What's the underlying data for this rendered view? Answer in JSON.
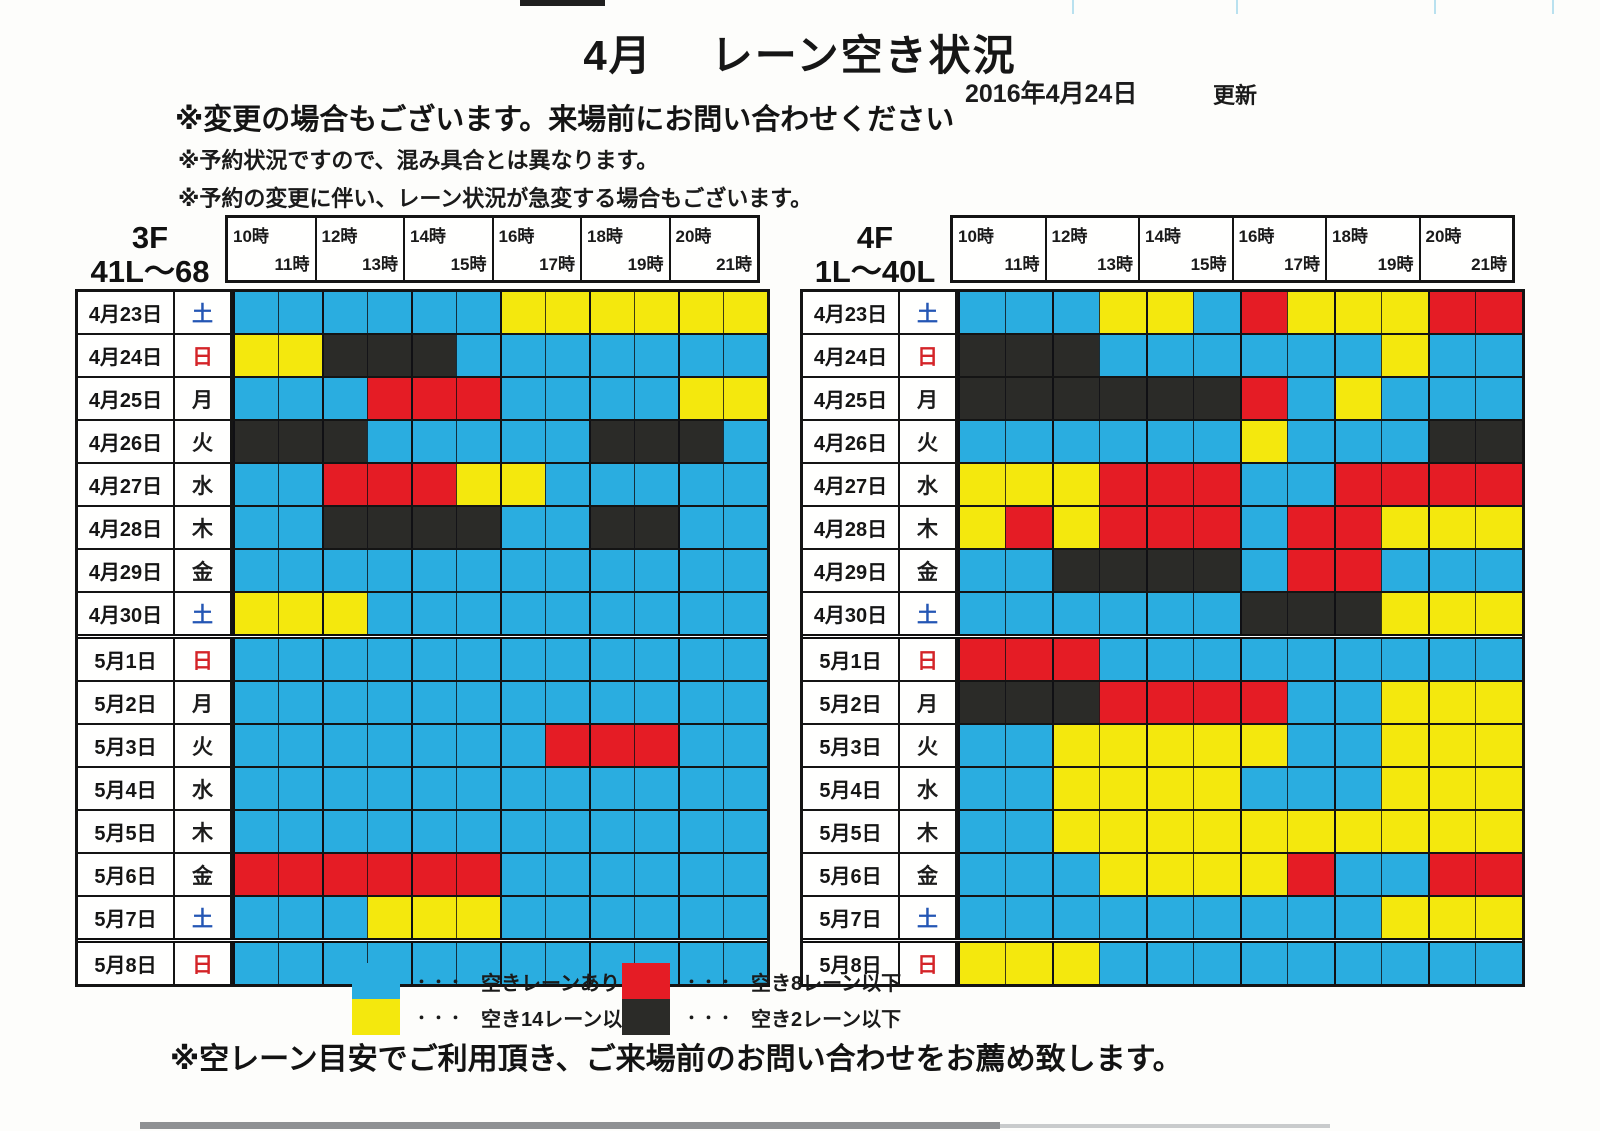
{
  "header": {
    "month": "4月",
    "title": "レーン空き状況",
    "updated_date": "2016年4月24日",
    "updated_label": "更新"
  },
  "notes": [
    "※変更の場合もございます。来場前にお問い合わせください",
    "※予約状況ですので、混み具合とは異なります。",
    "※予約の変更に伴い、レーン状況が急変する場合もございます。"
  ],
  "time_groups": [
    {
      "first": "10時",
      "second": "11時"
    },
    {
      "first": "12時",
      "second": "13時"
    },
    {
      "first": "14時",
      "second": "15時"
    },
    {
      "first": "16時",
      "second": "17時"
    },
    {
      "first": "18時",
      "second": "19時"
    },
    {
      "first": "20時",
      "second": "21時"
    }
  ],
  "legend": {
    "dots": "・・・",
    "items": [
      {
        "key": "available",
        "label": "空きレーンあり"
      },
      {
        "key": "limited14",
        "label": "空き14レーン以下"
      },
      {
        "key": "limited8",
        "label": "空き8レーン以下"
      },
      {
        "key": "limited2",
        "label": "空き2レーン以下"
      }
    ]
  },
  "footer_note": "※空レーン目安でご利用頂き、ご来場前のお問い合わせをお薦め致します。",
  "colors": {
    "available": "#2aade0",
    "limited14": "#f4e80d",
    "limited8": "#e51c25",
    "limited2": "#2b2b28",
    "saturday_text": "#2456b4",
    "sunday_text": "#d42428"
  },
  "tables": [
    {
      "floor_label": "3F",
      "lanes_label": "41L〜68",
      "rows": [
        {
          "date": "4月23日",
          "day": "土",
          "day_type": "sat",
          "cells": "BBBBBBYYYYYY"
        },
        {
          "date": "4月24日",
          "day": "日",
          "day_type": "sun",
          "cells": "YYDDDBBBBBBB"
        },
        {
          "date": "4月25日",
          "day": "月",
          "day_type": "wd",
          "cells": "BBBRRRBBBBYY"
        },
        {
          "date": "4月26日",
          "day": "火",
          "day_type": "wd",
          "cells": "DDDBBBBBDDDB"
        },
        {
          "date": "4月27日",
          "day": "水",
          "day_type": "wd",
          "cells": "BBRRRYYBBBBB"
        },
        {
          "date": "4月28日",
          "day": "木",
          "day_type": "wd",
          "cells": "BBDDDDBBDDBB"
        },
        {
          "date": "4月29日",
          "day": "金",
          "day_type": "wd",
          "cells": "BBBBBBBBBBBB"
        },
        {
          "date": "4月30日",
          "day": "土",
          "day_type": "sat",
          "cells": "YYYBBBBBBBBB"
        },
        {
          "date": "5月1日",
          "day": "日",
          "day_type": "sun",
          "cells": "BBBBBBBBBBBB",
          "sep": true
        },
        {
          "date": "5月2日",
          "day": "月",
          "day_type": "wd",
          "cells": "BBBBBBBBBBBB"
        },
        {
          "date": "5月3日",
          "day": "火",
          "day_type": "wd",
          "cells": "BBBBBBBRRRBB"
        },
        {
          "date": "5月4日",
          "day": "水",
          "day_type": "wd",
          "cells": "BBBBBBBBBBBB"
        },
        {
          "date": "5月5日",
          "day": "木",
          "day_type": "wd",
          "cells": "BBBBBBBBBBBB"
        },
        {
          "date": "5月6日",
          "day": "金",
          "day_type": "wd",
          "cells": "RRRRRRBBBBBB"
        },
        {
          "date": "5月7日",
          "day": "土",
          "day_type": "sat",
          "cells": "BBBYYYBBBBBB"
        },
        {
          "date": "5月8日",
          "day": "日",
          "day_type": "sun",
          "cells": "BBBBBBBBBBBB",
          "sep": true
        }
      ]
    },
    {
      "floor_label": "4F",
      "lanes_label": "1L〜40L",
      "rows": [
        {
          "date": "4月23日",
          "day": "土",
          "day_type": "sat",
          "cells": "BBBYYBRYYYRR"
        },
        {
          "date": "4月24日",
          "day": "日",
          "day_type": "sun",
          "cells": "DDDBBBBBBYBB"
        },
        {
          "date": "4月25日",
          "day": "月",
          "day_type": "wd",
          "cells": "DDDDDDRBYBBB"
        },
        {
          "date": "4月26日",
          "day": "火",
          "day_type": "wd",
          "cells": "BBBBBBYBBBDD"
        },
        {
          "date": "4月27日",
          "day": "水",
          "day_type": "wd",
          "cells": "YYYRRRBBRRRR"
        },
        {
          "date": "4月28日",
          "day": "木",
          "day_type": "wd",
          "cells": "YRYRRRBRRYYY"
        },
        {
          "date": "4月29日",
          "day": "金",
          "day_type": "wd",
          "cells": "BBDDDDBRRBBB"
        },
        {
          "date": "4月30日",
          "day": "土",
          "day_type": "sat",
          "cells": "BBBBBBDDDYYY"
        },
        {
          "date": "5月1日",
          "day": "日",
          "day_type": "sun",
          "cells": "RRRBBBBBBBBB",
          "sep": true
        },
        {
          "date": "5月2日",
          "day": "月",
          "day_type": "wd",
          "cells": "DDDRRRRBBYYY"
        },
        {
          "date": "5月3日",
          "day": "火",
          "day_type": "wd",
          "cells": "BBYYYYYBBYYY"
        },
        {
          "date": "5月4日",
          "day": "水",
          "day_type": "wd",
          "cells": "BBYYYYBBBYYY"
        },
        {
          "date": "5月5日",
          "day": "木",
          "day_type": "wd",
          "cells": "BBYYYYYYYYYY"
        },
        {
          "date": "5月6日",
          "day": "金",
          "day_type": "wd",
          "cells": "BBBYYYYRBBRR"
        },
        {
          "date": "5月7日",
          "day": "土",
          "day_type": "sat",
          "cells": "BBBBBBBBBYYY"
        },
        {
          "date": "5月8日",
          "day": "日",
          "day_type": "sun",
          "cells": "YYYBBBBBBBBB",
          "sep": true
        }
      ]
    }
  ]
}
